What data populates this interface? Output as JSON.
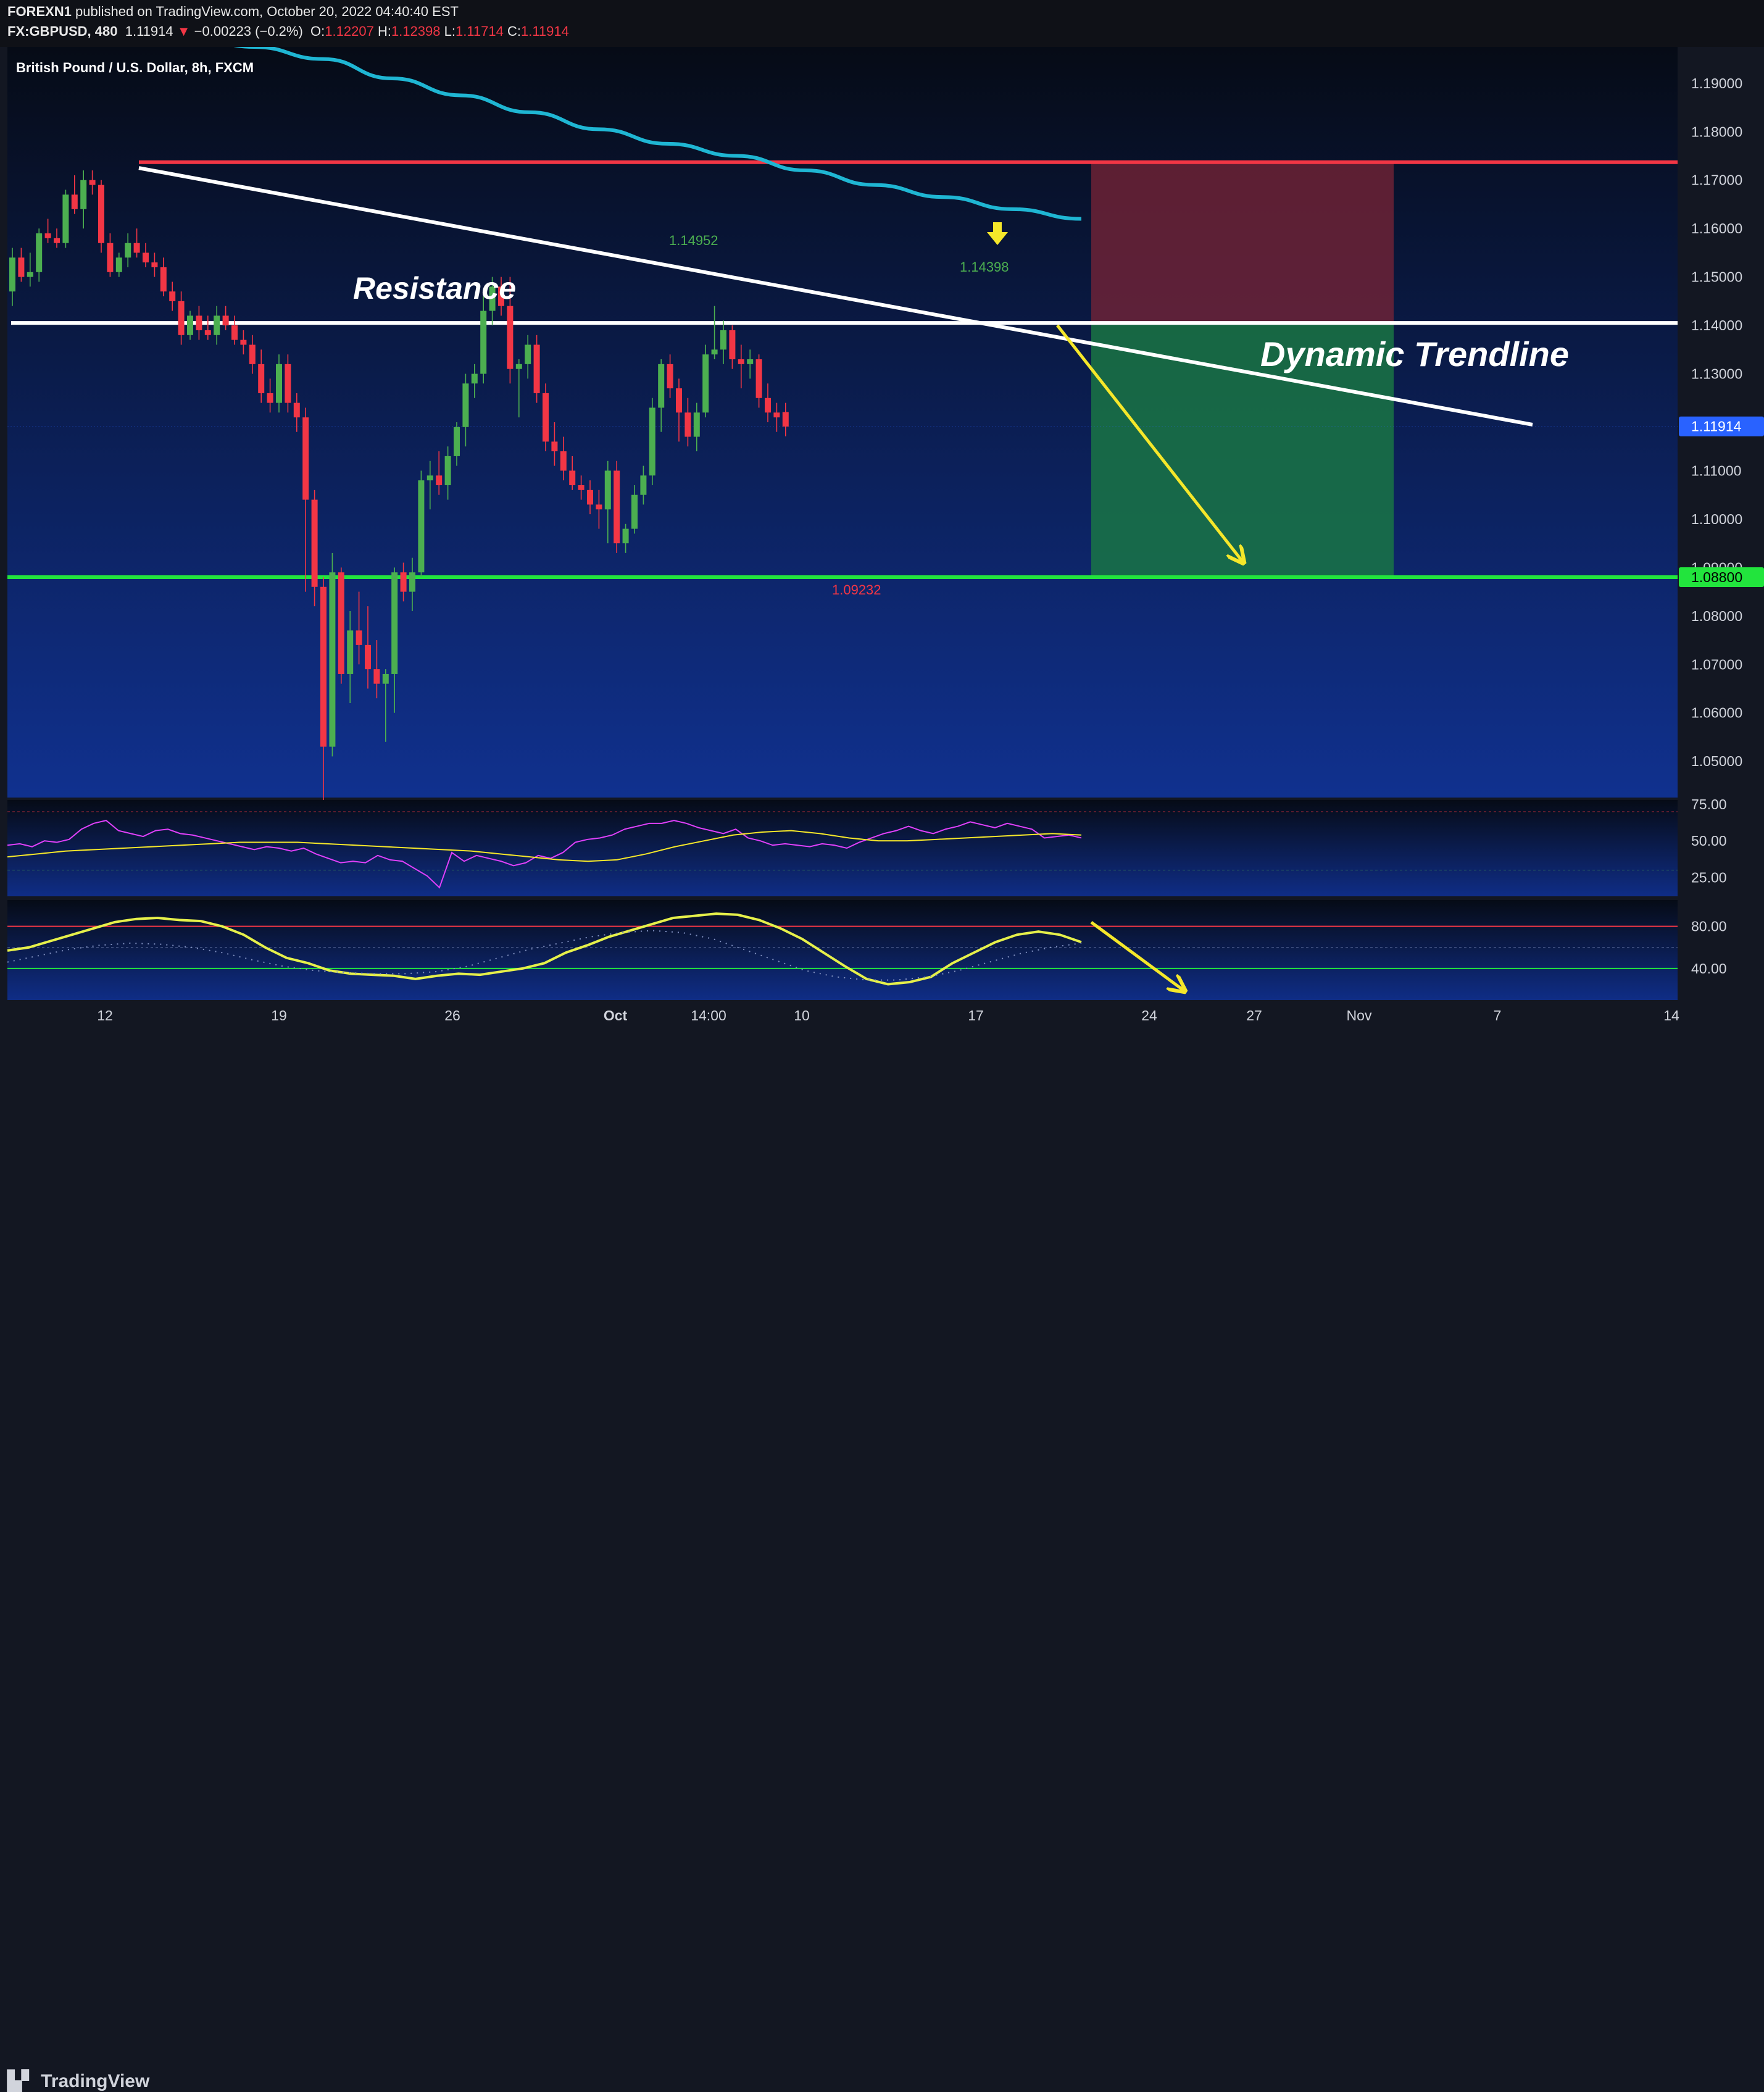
{
  "header": {
    "publisher_name": "FOREXN1",
    "publisher_text": "published on TradingView.com, October 20, 2022 04:40:40 EST",
    "symbol": "FX:GBPUSD, 480",
    "last": "1.11914",
    "change_arrow": "▼",
    "change": "−0.00223 (−0.2%)",
    "open_label": "O:",
    "open": "1.12207",
    "high_label": "H:",
    "high": "1.12398",
    "low_label": "L:",
    "low": "1.11714",
    "close_label": "C:",
    "close": "1.11914"
  },
  "footer": {
    "logo_text": "TradingView",
    "logo_icon": "tradingview-logo-icon"
  },
  "chart_data": [
    {
      "type": "candlestick",
      "title": "British Pound / U.S. Dollar, 8h, FXCM",
      "ylim": [
        1.0425,
        1.1975
      ],
      "yticks": [
        "1.19000",
        "1.18000",
        "1.17000",
        "1.16000",
        "1.15000",
        "1.14000",
        "1.13000",
        "1.12000",
        "1.11000",
        "1.10000",
        "1.09000",
        "1.08000",
        "1.07000",
        "1.06000",
        "1.05000"
      ],
      "xticks": [
        "12",
        "19",
        "26",
        "Oct",
        "14:00",
        "10",
        "17",
        "24",
        "27",
        "Nov",
        "7",
        "14"
      ],
      "ohlc": [
        [
          1.147,
          1.156,
          1.144,
          1.154
        ],
        [
          1.154,
          1.156,
          1.149,
          1.15
        ],
        [
          1.15,
          1.155,
          1.148,
          1.151
        ],
        [
          1.151,
          1.16,
          1.149,
          1.159
        ],
        [
          1.159,
          1.162,
          1.157,
          1.158
        ],
        [
          1.158,
          1.16,
          1.156,
          1.157
        ],
        [
          1.157,
          1.168,
          1.156,
          1.167
        ],
        [
          1.167,
          1.171,
          1.163,
          1.164
        ],
        [
          1.164,
          1.172,
          1.16,
          1.17
        ],
        [
          1.17,
          1.172,
          1.167,
          1.169
        ],
        [
          1.169,
          1.17,
          1.155,
          1.157
        ],
        [
          1.157,
          1.159,
          1.15,
          1.151
        ],
        [
          1.151,
          1.155,
          1.15,
          1.154
        ],
        [
          1.154,
          1.159,
          1.152,
          1.157
        ],
        [
          1.157,
          1.16,
          1.154,
          1.155
        ],
        [
          1.155,
          1.157,
          1.152,
          1.153
        ],
        [
          1.153,
          1.155,
          1.15,
          1.152
        ],
        [
          1.152,
          1.154,
          1.146,
          1.147
        ],
        [
          1.147,
          1.149,
          1.143,
          1.145
        ],
        [
          1.145,
          1.147,
          1.136,
          1.138
        ],
        [
          1.138,
          1.143,
          1.137,
          1.142
        ],
        [
          1.142,
          1.144,
          1.137,
          1.139
        ],
        [
          1.139,
          1.142,
          1.137,
          1.138
        ],
        [
          1.138,
          1.144,
          1.136,
          1.142
        ],
        [
          1.142,
          1.144,
          1.139,
          1.14
        ],
        [
          1.14,
          1.142,
          1.136,
          1.137
        ],
        [
          1.137,
          1.139,
          1.134,
          1.136
        ],
        [
          1.136,
          1.138,
          1.13,
          1.132
        ],
        [
          1.132,
          1.135,
          1.124,
          1.126
        ],
        [
          1.126,
          1.129,
          1.122,
          1.124
        ],
        [
          1.124,
          1.134,
          1.122,
          1.132
        ],
        [
          1.132,
          1.134,
          1.122,
          1.124
        ],
        [
          1.124,
          1.126,
          1.118,
          1.121
        ],
        [
          1.121,
          1.123,
          1.085,
          1.104
        ],
        [
          1.104,
          1.106,
          1.082,
          1.086
        ],
        [
          1.086,
          1.088,
          1.036,
          1.053
        ],
        [
          1.053,
          1.093,
          1.051,
          1.089
        ],
        [
          1.089,
          1.09,
          1.066,
          1.068
        ],
        [
          1.068,
          1.081,
          1.062,
          1.077
        ],
        [
          1.077,
          1.085,
          1.07,
          1.074
        ],
        [
          1.074,
          1.082,
          1.065,
          1.069
        ],
        [
          1.069,
          1.075,
          1.063,
          1.066
        ],
        [
          1.066,
          1.069,
          1.054,
          1.068
        ],
        [
          1.068,
          1.09,
          1.06,
          1.089
        ],
        [
          1.089,
          1.091,
          1.083,
          1.085
        ],
        [
          1.085,
          1.092,
          1.081,
          1.089
        ],
        [
          1.089,
          1.11,
          1.088,
          1.108
        ],
        [
          1.108,
          1.112,
          1.102,
          1.109
        ],
        [
          1.109,
          1.114,
          1.105,
          1.107
        ],
        [
          1.107,
          1.115,
          1.104,
          1.113
        ],
        [
          1.113,
          1.12,
          1.111,
          1.119
        ],
        [
          1.119,
          1.13,
          1.115,
          1.128
        ],
        [
          1.128,
          1.132,
          1.125,
          1.13
        ],
        [
          1.13,
          1.146,
          1.128,
          1.143
        ],
        [
          1.143,
          1.15,
          1.14,
          1.148
        ],
        [
          1.148,
          1.15,
          1.142,
          1.144
        ],
        [
          1.144,
          1.15,
          1.128,
          1.131
        ],
        [
          1.131,
          1.133,
          1.121,
          1.132
        ],
        [
          1.132,
          1.138,
          1.129,
          1.136
        ],
        [
          1.136,
          1.138,
          1.124,
          1.126
        ],
        [
          1.126,
          1.128,
          1.114,
          1.116
        ],
        [
          1.116,
          1.12,
          1.111,
          1.114
        ],
        [
          1.114,
          1.117,
          1.108,
          1.11
        ],
        [
          1.11,
          1.113,
          1.106,
          1.107
        ],
        [
          1.107,
          1.109,
          1.104,
          1.106
        ],
        [
          1.106,
          1.108,
          1.101,
          1.103
        ],
        [
          1.103,
          1.106,
          1.098,
          1.102
        ],
        [
          1.102,
          1.112,
          1.095,
          1.11
        ],
        [
          1.11,
          1.112,
          1.093,
          1.095
        ],
        [
          1.095,
          1.099,
          1.093,
          1.098
        ],
        [
          1.098,
          1.107,
          1.097,
          1.105
        ],
        [
          1.105,
          1.111,
          1.103,
          1.109
        ],
        [
          1.109,
          1.125,
          1.107,
          1.123
        ],
        [
          1.123,
          1.133,
          1.118,
          1.132
        ],
        [
          1.132,
          1.134,
          1.125,
          1.127
        ],
        [
          1.127,
          1.129,
          1.116,
          1.122
        ],
        [
          1.122,
          1.125,
          1.115,
          1.117
        ],
        [
          1.117,
          1.124,
          1.114,
          1.122
        ],
        [
          1.122,
          1.136,
          1.121,
          1.134
        ],
        [
          1.134,
          1.144,
          1.133,
          1.135
        ],
        [
          1.135,
          1.141,
          1.132,
          1.139
        ],
        [
          1.139,
          1.14,
          1.131,
          1.133
        ],
        [
          1.133,
          1.136,
          1.127,
          1.132
        ],
        [
          1.132,
          1.135,
          1.129,
          1.133
        ],
        [
          1.133,
          1.134,
          1.123,
          1.125
        ],
        [
          1.125,
          1.128,
          1.12,
          1.122
        ],
        [
          1.122,
          1.124,
          1.118,
          1.121
        ],
        [
          1.1221,
          1.124,
          1.1171,
          1.1191
        ]
      ],
      "high_label": "1.14952",
      "high_label2": "1.14398",
      "low_label": "1.09232",
      "last_price_label": "1.11914",
      "target_label": "1.08800",
      "ema": [
        1.2,
        1.1975,
        1.195,
        1.191,
        1.1875,
        1.184,
        1.1805,
        1.1775,
        1.175,
        1.172,
        1.169,
        1.1665,
        1.164,
        1.162
      ],
      "levels": [
        {
          "value": 1.1737,
          "color": "#f23645"
        },
        {
          "value": 1.1405,
          "color": "#ffffff"
        },
        {
          "value": 1.088,
          "color": "#22e43d"
        }
      ],
      "trendline": [
        [
          1.1725,
          1.1195
        ]
      ],
      "annotations": [
        "Resistance",
        "Dynamic Trendline"
      ],
      "position": {
        "stop": 1.1737,
        "entry": 1.1405,
        "target": 1.088
      },
      "colors": {
        "up": "#4caf50",
        "down": "#f23645",
        "ema": "#1fb6d3",
        "bg_top": "#060b16",
        "bg_bottom": "#10318f",
        "arrow": "#f5e72a"
      }
    },
    {
      "type": "line",
      "name": "RSI",
      "ylim": [
        12,
        78
      ],
      "yticks": [
        "75.00",
        "50.00",
        "25.00"
      ],
      "band": [
        70,
        30
      ],
      "rsi": [
        47,
        48,
        46,
        50,
        49,
        51,
        58,
        62,
        64,
        57,
        55,
        53,
        57,
        58,
        55,
        54,
        52,
        50,
        48,
        46,
        44,
        46,
        45,
        43,
        45,
        41,
        38,
        35,
        36,
        35,
        40,
        37,
        36,
        31,
        26,
        18,
        42,
        36,
        40,
        38,
        36,
        33,
        35,
        40,
        38,
        42,
        49,
        51,
        52,
        54,
        58,
        60,
        62,
        62,
        64,
        62,
        59,
        57,
        55,
        58,
        52,
        50,
        47,
        48,
        47,
        46,
        48,
        47,
        45,
        49,
        52,
        55,
        57,
        60,
        57,
        55,
        58,
        60,
        63,
        61,
        59,
        62,
        60,
        58,
        52,
        53,
        54,
        52
      ],
      "ma": [
        39,
        41,
        43,
        44,
        45,
        46,
        47,
        48,
        49,
        49,
        49,
        48,
        47,
        46,
        45,
        44,
        43,
        41,
        39,
        37,
        36,
        37,
        41,
        46,
        50,
        54,
        56,
        57,
        55,
        52,
        50,
        50,
        51,
        52,
        53,
        54,
        55,
        54
      ]
    },
    {
      "type": "line",
      "name": "Oscillator",
      "ylim": [
        10,
        105
      ],
      "yticks": [
        "80.00",
        "40.00"
      ],
      "bands": [
        80,
        60,
        40
      ],
      "osc": [
        57,
        60,
        66,
        72,
        78,
        84,
        87,
        88,
        86,
        85,
        80,
        72,
        60,
        50,
        45,
        38,
        35,
        34,
        33,
        30,
        33,
        35,
        34,
        37,
        40,
        45,
        55,
        62,
        70,
        76,
        82,
        88,
        90,
        92,
        91,
        86,
        78,
        68,
        55,
        42,
        30,
        25,
        27,
        32,
        45,
        55,
        65,
        72,
        75,
        72,
        65
      ],
      "signal": [
        46,
        52,
        58,
        62,
        64,
        63,
        60,
        55,
        48,
        42,
        38,
        36,
        35,
        35,
        37,
        42,
        50,
        58,
        64,
        70,
        74,
        76,
        74,
        68,
        58,
        48,
        38,
        32,
        29,
        29,
        32,
        38,
        46,
        54,
        60,
        64
      ]
    }
  ]
}
